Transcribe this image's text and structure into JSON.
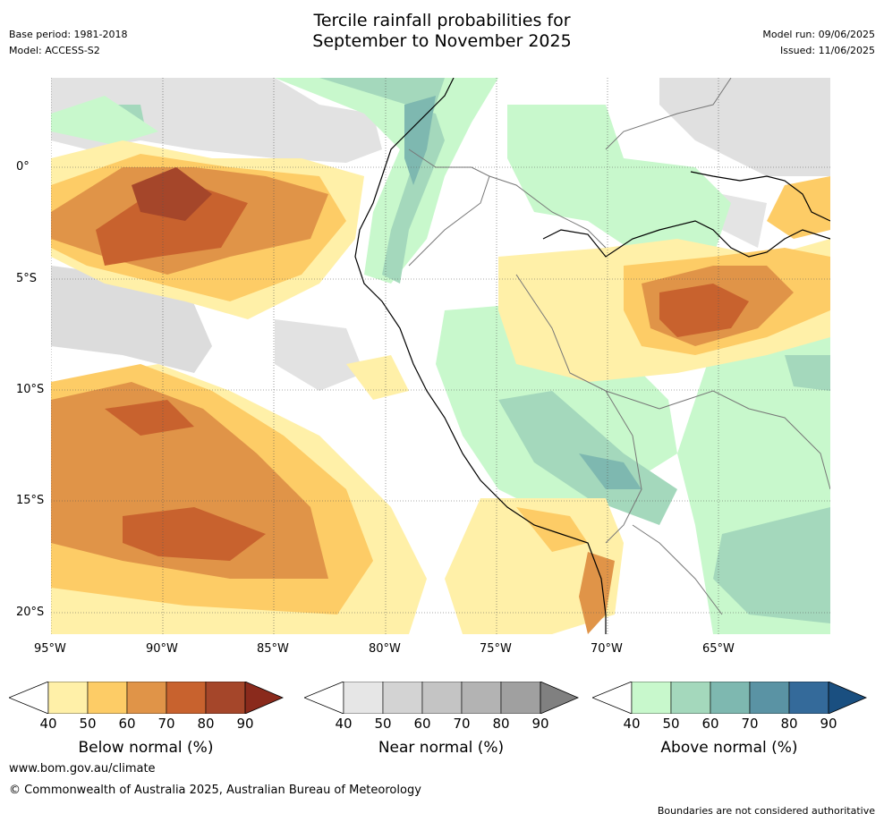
{
  "title_line1": "Tercile rainfall probabilities for",
  "title_line2": "September to November 2025",
  "base_period": "Base period: 1981-2018",
  "model": "Model: ACCESS-S2",
  "model_run": "Model run: 09/06/2025",
  "issued": "Issued: 11/06/2025",
  "lat_labels": [
    "0°",
    "5°S",
    "10°S",
    "15°S",
    "20°S"
  ],
  "lon_labels": [
    "95°W",
    "90°W",
    "85°W",
    "80°W",
    "75°W",
    "70°W",
    "65°W"
  ],
  "colorbars": {
    "below": {
      "label": "Below normal (%)",
      "ticks": [
        "40",
        "50",
        "60",
        "70",
        "80",
        "90"
      ],
      "colors": [
        "#fff0a8",
        "#fdcc66",
        "#e09448",
        "#c8622e",
        "#a5462a",
        "#8a2a1c"
      ]
    },
    "near": {
      "label": "Near normal (%)",
      "ticks": [
        "40",
        "50",
        "60",
        "70",
        "80",
        "90"
      ],
      "colors": [
        "#e6e6e6",
        "#d3d3d3",
        "#c4c4c4",
        "#b3b3b3",
        "#a0a0a0",
        "#808080"
      ]
    },
    "above": {
      "label": "Above normal (%)",
      "ticks": [
        "40",
        "50",
        "60",
        "70",
        "80",
        "90"
      ],
      "colors": [
        "#c8f8cc",
        "#a4d8bc",
        "#7eb8b0",
        "#5a93a4",
        "#346a9a",
        "#1a4f80"
      ]
    }
  },
  "footer_url": "www.bom.gov.au/climate",
  "copyright": "© Commonwealth of Australia 2025, Australian Bureau of Meteorology",
  "disclaimer": "Boundaries are not considered authoritative"
}
